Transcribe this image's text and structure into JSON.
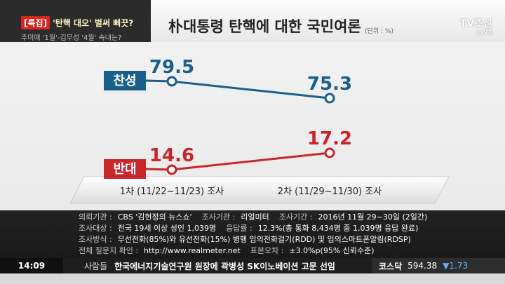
{
  "headline": {
    "tag": "[특집]",
    "text": "'탄핵 대오' 벌써 삐끗?"
  },
  "subhead": "추미애 '1월'-김무성 '4월' 속내는?",
  "logo": {
    "main": "TV조선",
    "sub": "LIVE"
  },
  "colors": {
    "agree": "#1a5f8a",
    "oppose": "#c8262a"
  },
  "chart_data": {
    "type": "line",
    "title": "朴대통령 탄핵에 대한 국민여론",
    "unit": "(단위 : %)",
    "categories": [
      "1차 (11/22~11/23) 조사",
      "2차 (11/29~11/30) 조사"
    ],
    "ylim": [
      0,
      100
    ],
    "series": [
      {
        "name": "찬성",
        "values": [
          79.5,
          75.3
        ]
      },
      {
        "name": "반대",
        "values": [
          14.6,
          17.2
        ]
      }
    ],
    "value_labels": [
      [
        "79.5",
        "75.3"
      ],
      [
        "14.6",
        "17.2"
      ]
    ]
  },
  "info": {
    "rows": [
      [
        {
          "label": "의뢰기관 :",
          "value": "CBS '김현정의 뉴스쇼'"
        },
        {
          "label": "조사기관 :",
          "value": "리얼미터"
        },
        {
          "label": "조사기간 :",
          "value": "2016년 11월 29~30일 (2일간)"
        }
      ],
      [
        {
          "label": "조사대상 :",
          "value": "전국 19세 이상 성인 1,039명"
        },
        {
          "label": "응답률 :",
          "value": "12.3%(총 통화 8,434명 중 1,039명 응답 완료)"
        }
      ],
      [
        {
          "label": "조사방식 :",
          "value": "무선전화(85%)와 유선전화(15%) 병행 임의전화걸기(RDD) 및 임의스마트폰알림(RDSP)"
        }
      ],
      [
        {
          "label": "전체 질문지 확인 :",
          "value": "http://www.realmeter.net"
        },
        {
          "label": "표본오차 :",
          "value": "±3.0%p(95% 신뢰수준)"
        }
      ]
    ]
  },
  "ticker": {
    "time": "14:09",
    "category": "사람들",
    "text": "한국에너지기술연구원 원장에 곽병성 SK이노베이션 고문 선임",
    "market_name": "코스닥",
    "market_value": "594.38",
    "market_change": "▼1.73"
  }
}
